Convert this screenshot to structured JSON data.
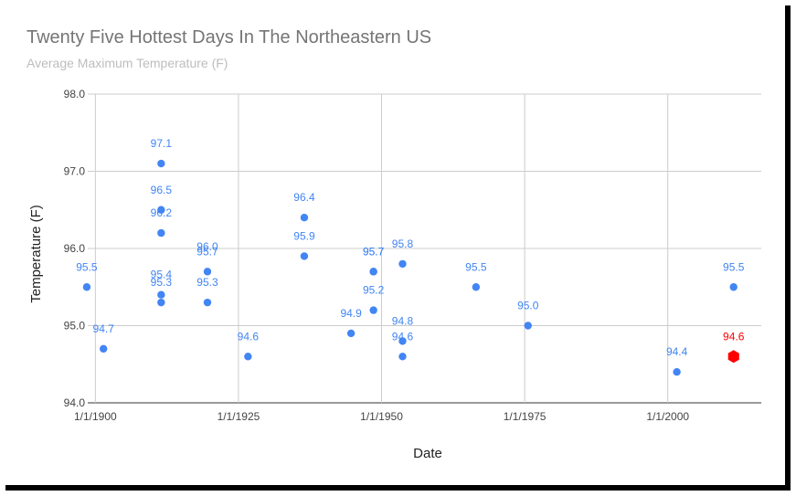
{
  "chart_data": {
    "type": "scatter",
    "title": "Twenty Five Hottest Days In The Northeastern US",
    "subtitle": "Average Maximum Temperature (F)",
    "xlabel": "Date",
    "ylabel": "Temperature (F)",
    "xlim": [
      "1898-09-01",
      "2016-05-01"
    ],
    "ylim": [
      94.0,
      98.0
    ],
    "x_ticks": [
      "1/1/1900",
      "1/1/1925",
      "1/1/1950",
      "1/1/1975",
      "1/1/2000"
    ],
    "y_ticks": [
      "94.0",
      "95.0",
      "96.0",
      "97.0",
      "98.0"
    ],
    "grid": true,
    "series_color": "#4285f4",
    "highlight_color": "#ff0000",
    "points": [
      {
        "date": "1898-07-01",
        "y": 95.5,
        "label": "95.5"
      },
      {
        "date": "1901-06-01",
        "y": 94.7,
        "label": "94.7"
      },
      {
        "date": "1911-07-01",
        "y": 97.1,
        "label": "97.1"
      },
      {
        "date": "1911-07-01",
        "y": 96.5,
        "label": "96.5"
      },
      {
        "date": "1911-07-01",
        "y": 96.2,
        "label": "96.2"
      },
      {
        "date": "1911-07-01",
        "y": 95.4,
        "label": "95.4"
      },
      {
        "date": "1911-07-01",
        "y": 95.3,
        "label": "95.3"
      },
      {
        "date": "1919-08-01",
        "y": 95.7,
        "label": "95.7"
      },
      {
        "date": "1919-08-01",
        "y": 95.3,
        "label": "95.3"
      },
      {
        "date": "1919-08-01",
        "y": 96.0,
        "label": "96.0",
        "label_only": true
      },
      {
        "date": "1926-09-01",
        "y": 94.6,
        "label": "94.6"
      },
      {
        "date": "1936-07-01",
        "y": 96.4,
        "label": "96.4"
      },
      {
        "date": "1936-07-01",
        "y": 95.9,
        "label": "95.9"
      },
      {
        "date": "1944-09-01",
        "y": 94.9,
        "label": "94.9"
      },
      {
        "date": "1948-08-01",
        "y": 95.7,
        "label": "95.7"
      },
      {
        "date": "1948-08-01",
        "y": 95.7,
        "label": "95.7"
      },
      {
        "date": "1948-08-01",
        "y": 95.2,
        "label": "95.2"
      },
      {
        "date": "1953-09-01",
        "y": 95.8,
        "label": "95.8"
      },
      {
        "date": "1953-09-01",
        "y": 94.8,
        "label": "94.8"
      },
      {
        "date": "1953-09-01",
        "y": 94.6,
        "label": "94.6"
      },
      {
        "date": "1966-07-01",
        "y": 95.5,
        "label": "95.5"
      },
      {
        "date": "1975-08-01",
        "y": 95.0,
        "label": "95.0"
      },
      {
        "date": "2001-08-01",
        "y": 94.4,
        "label": "94.4"
      },
      {
        "date": "2011-07-01",
        "y": 95.5,
        "label": "95.5"
      },
      {
        "date": "2011-07-01",
        "y": 94.6,
        "label": "94.6",
        "highlight": true
      }
    ]
  }
}
